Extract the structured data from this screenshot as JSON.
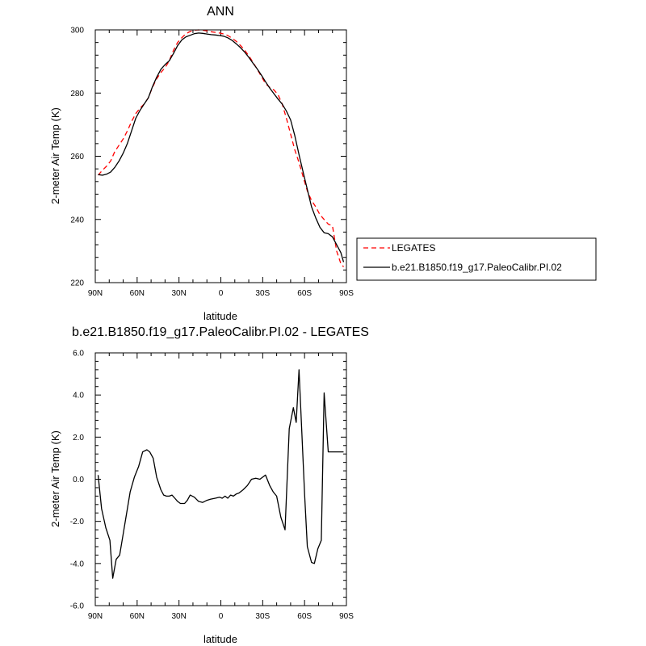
{
  "chart_data": [
    {
      "type": "line",
      "title": "ANN",
      "xlabel": "latitude",
      "ylabel": "2-meter Air Temp (K)",
      "xlim": [
        90,
        -90
      ],
      "ylim": [
        220,
        300
      ],
      "x_ticks": [
        {
          "value": 90,
          "label": "90N"
        },
        {
          "value": 60,
          "label": "60N"
        },
        {
          "value": 30,
          "label": "30N"
        },
        {
          "value": 0,
          "label": "0"
        },
        {
          "value": -30,
          "label": "30S"
        },
        {
          "value": -60,
          "label": "60S"
        },
        {
          "value": -90,
          "label": "90S"
        }
      ],
      "y_ticks": [
        {
          "value": 220,
          "label": "220"
        },
        {
          "value": 240,
          "label": "240"
        },
        {
          "value": 260,
          "label": "260"
        },
        {
          "value": 280,
          "label": "280"
        },
        {
          "value": 300,
          "label": "300"
        }
      ],
      "legend_position": "right",
      "series": [
        {
          "name": "LEGATES",
          "color": "#ff0000",
          "dash": "dashed",
          "x": [
            88,
            85,
            82,
            79,
            76,
            73,
            70,
            67,
            64,
            61,
            58,
            55,
            52,
            49,
            46,
            43,
            40,
            37,
            34,
            31,
            28,
            25,
            22,
            19,
            16,
            13,
            10,
            7,
            4,
            1,
            -2,
            -5,
            -8,
            -11,
            -14,
            -17,
            -20,
            -23,
            -26,
            -29,
            -32,
            -35,
            -38,
            -41,
            -44,
            -47,
            -50,
            -53,
            -56,
            -59,
            -62,
            -65,
            -68,
            -71,
            -74,
            -77,
            -80,
            -83,
            -86,
            -88
          ],
          "y": [
            254.0,
            255.5,
            256.8,
            258.5,
            261.5,
            263.5,
            265.5,
            268.0,
            271.0,
            273.5,
            275.2,
            276.5,
            278.5,
            281.8,
            284.5,
            286.5,
            288.0,
            290.2,
            293.5,
            296.0,
            297.5,
            298.8,
            299.5,
            299.9,
            300.0,
            299.9,
            299.7,
            299.4,
            299.2,
            299.0,
            298.7,
            298.2,
            297.4,
            296.4,
            295.1,
            293.6,
            291.8,
            289.8,
            287.6,
            285.3,
            283.0,
            281.8,
            281.0,
            279.5,
            276.5,
            272.0,
            267.0,
            262.0,
            258.0,
            253.5,
            249.0,
            246.0,
            244.0,
            241.5,
            240.0,
            238.5,
            238.0,
            230.0,
            226.0,
            225.0
          ]
        },
        {
          "name": "b.e21.B1850.f19_g17.PaleoCalibr.PI.02",
          "color": "#000000",
          "dash": "solid",
          "x": [
            88,
            85,
            82,
            79,
            76,
            73,
            70,
            67,
            64,
            61,
            58,
            55,
            52,
            49,
            46,
            43,
            40,
            37,
            34,
            31,
            28,
            25,
            22,
            19,
            16,
            13,
            10,
            7,
            4,
            1,
            -2,
            -5,
            -8,
            -11,
            -14,
            -17,
            -20,
            -23,
            -26,
            -29,
            -32,
            -35,
            -38,
            -41,
            -44,
            -47,
            -50,
            -53,
            -56,
            -59,
            -62,
            -65,
            -68,
            -71,
            -74,
            -77,
            -80,
            -83,
            -86,
            -88
          ],
          "y": [
            254.2,
            254.0,
            254.3,
            255.0,
            256.5,
            258.5,
            261.0,
            264.0,
            268.0,
            272.0,
            274.5,
            276.5,
            278.5,
            282.0,
            285.0,
            287.5,
            289.0,
            290.2,
            292.5,
            295.0,
            296.8,
            297.8,
            298.3,
            298.8,
            299.0,
            298.9,
            298.7,
            298.5,
            298.4,
            298.2,
            298.0,
            297.5,
            296.7,
            295.6,
            294.4,
            293.0,
            291.3,
            289.5,
            287.7,
            285.7,
            283.6,
            281.6,
            279.8,
            278.1,
            276.5,
            274.3,
            271.5,
            266.5,
            260.5,
            255.0,
            249.5,
            244.0,
            240.5,
            237.5,
            235.8,
            235.5,
            234.5,
            232.0,
            229.5,
            226.5
          ]
        }
      ]
    },
    {
      "type": "line",
      "title": "b.e21.B1850.f19_g17.PaleoCalibr.PI.02 - LEGATES",
      "xlabel": "latitude",
      "ylabel": "2-meter Air Temp (K)",
      "xlim": [
        90,
        -90
      ],
      "ylim": [
        -6,
        6
      ],
      "x_ticks": [
        {
          "value": 90,
          "label": "90N"
        },
        {
          "value": 60,
          "label": "60N"
        },
        {
          "value": 30,
          "label": "30N"
        },
        {
          "value": 0,
          "label": "0"
        },
        {
          "value": -30,
          "label": "30S"
        },
        {
          "value": -60,
          "label": "60S"
        },
        {
          "value": -90,
          "label": "90S"
        }
      ],
      "y_ticks": [
        {
          "value": -6,
          "label": "-6.0"
        },
        {
          "value": -4,
          "label": "-4.0"
        },
        {
          "value": -2,
          "label": "-2.0"
        },
        {
          "value": 0,
          "label": "0.0"
        },
        {
          "value": 2,
          "label": "2.0"
        },
        {
          "value": 4,
          "label": "4.0"
        },
        {
          "value": 6,
          "label": "6.0"
        }
      ],
      "series": [
        {
          "color": "#000000",
          "dash": "solid",
          "x": [
            88,
            85.5,
            82.5,
            79.5,
            77.5,
            75,
            72.5,
            71,
            68,
            65,
            62,
            59,
            56,
            53,
            51,
            48.5,
            46,
            43,
            41,
            39,
            37,
            35,
            33,
            31,
            29,
            26,
            24,
            22,
            19,
            16,
            13,
            10,
            7.5,
            4,
            1,
            -1,
            -3,
            -5,
            -7,
            -9,
            -11,
            -13,
            -16,
            -19,
            -22,
            -25,
            -28,
            -30,
            -32,
            -35,
            -37.5,
            -40,
            -43,
            -46,
            -49,
            -52,
            -54,
            -56,
            -58,
            -60,
            -62,
            -65,
            -67,
            -69.5,
            -72,
            -74,
            -77,
            -80,
            -82,
            -84,
            -86,
            -88
          ],
          "y": [
            0.2,
            -1.4,
            -2.3,
            -2.9,
            -4.7,
            -3.8,
            -3.6,
            -3.0,
            -1.8,
            -0.6,
            0.1,
            0.6,
            1.3,
            1.4,
            1.3,
            1.0,
            0.1,
            -0.5,
            -0.75,
            -0.8,
            -0.8,
            -0.75,
            -0.9,
            -1.05,
            -1.15,
            -1.15,
            -1.0,
            -0.75,
            -0.85,
            -1.05,
            -1.1,
            -1.0,
            -0.95,
            -0.9,
            -0.85,
            -0.9,
            -0.8,
            -0.9,
            -0.75,
            -0.8,
            -0.7,
            -0.65,
            -0.5,
            -0.3,
            0.0,
            0.05,
            0.0,
            0.1,
            0.2,
            -0.3,
            -0.6,
            -0.8,
            -1.8,
            -2.4,
            2.4,
            3.4,
            2.7,
            5.2,
            2.3,
            -0.7,
            -3.2,
            -3.95,
            -4.0,
            -3.3,
            -2.9,
            4.1,
            1.3,
            1.3,
            1.3,
            1.3,
            1.3,
            1.3
          ]
        }
      ]
    }
  ]
}
